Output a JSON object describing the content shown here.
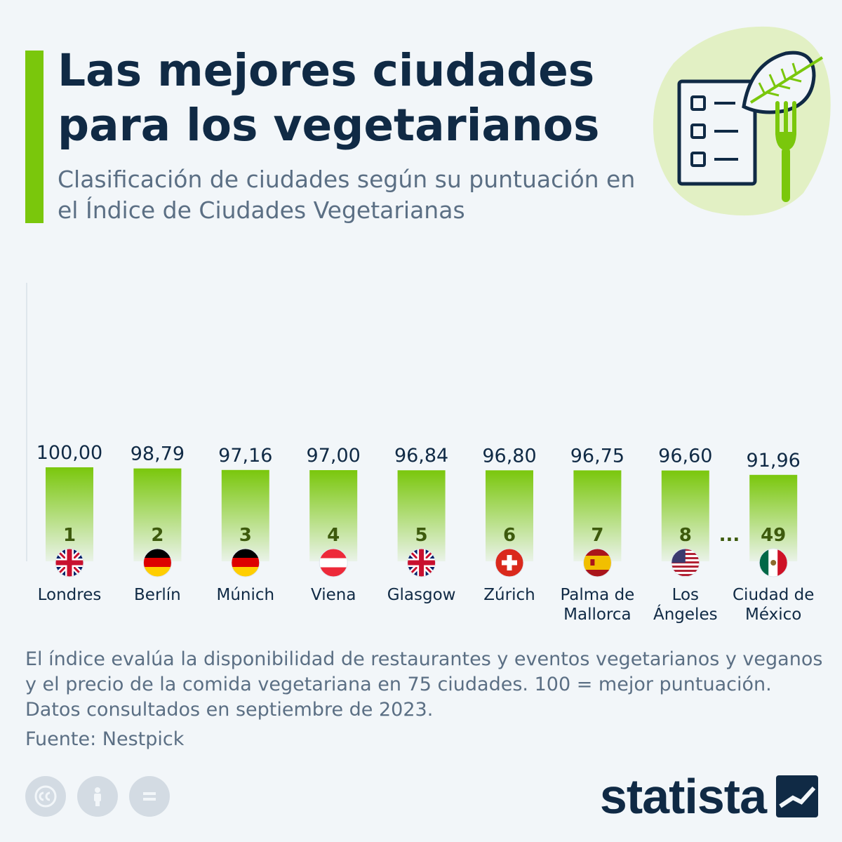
{
  "title": "Las mejores ciudades para los vegetarianos",
  "subtitle": "Clasificación de ciudades según su puntuación en el Índice de Ciudades Vegetarianas",
  "footnote": "El índice evalúa la disponibilidad de restaurantes y eventos vegetarianos y veganos y el precio de la comida vegetariana en 75 ciudades. 100 = mejor puntuación. Datos consultados en septiembre de 2023.",
  "source": "Fuente: Nestpick",
  "brand": "statista",
  "gap_marker": "...",
  "hero_icon": "checklist-leaf-fork-icon",
  "license_icons": [
    "creative-commons-icon",
    "attribution-icon",
    "no-derivatives-icon"
  ],
  "colors": {
    "background": "#f2f6f9",
    "accent": "#7ac70c",
    "title": "#102a45",
    "text": "#5b6f84",
    "rank": "#3d5a0d"
  },
  "chart_data": {
    "type": "bar",
    "title": "",
    "xlabel": "",
    "ylabel": "",
    "ylim": [
      0,
      100
    ],
    "grid": false,
    "categories": [
      "Londres",
      "Berlín",
      "Múnich",
      "Viena",
      "Glasgow",
      "Zúrich",
      "Palma de Mallorca",
      "Los Ángeles",
      "Ciudad de México"
    ],
    "value_labels": [
      "100,00",
      "98,79",
      "97,16",
      "97,00",
      "96,84",
      "96,80",
      "96,75",
      "96,60",
      "91,96"
    ],
    "values": [
      100.0,
      98.79,
      97.16,
      97.0,
      96.84,
      96.8,
      96.75,
      96.6,
      91.96
    ],
    "ranks": [
      "1",
      "2",
      "3",
      "4",
      "5",
      "6",
      "7",
      "8",
      "49"
    ],
    "flags": [
      "uk",
      "germany",
      "germany",
      "austria",
      "uk",
      "switzerland",
      "spain",
      "usa",
      "mexico"
    ],
    "city_lines": [
      [
        "Londres"
      ],
      [
        "Berlín"
      ],
      [
        "Múnich"
      ],
      [
        "Viena"
      ],
      [
        "Glasgow"
      ],
      [
        "Zúrich"
      ],
      [
        "Palma de",
        "Mallorca"
      ],
      [
        "Los",
        "Ángeles"
      ],
      [
        "Ciudad de",
        "México"
      ]
    ]
  }
}
